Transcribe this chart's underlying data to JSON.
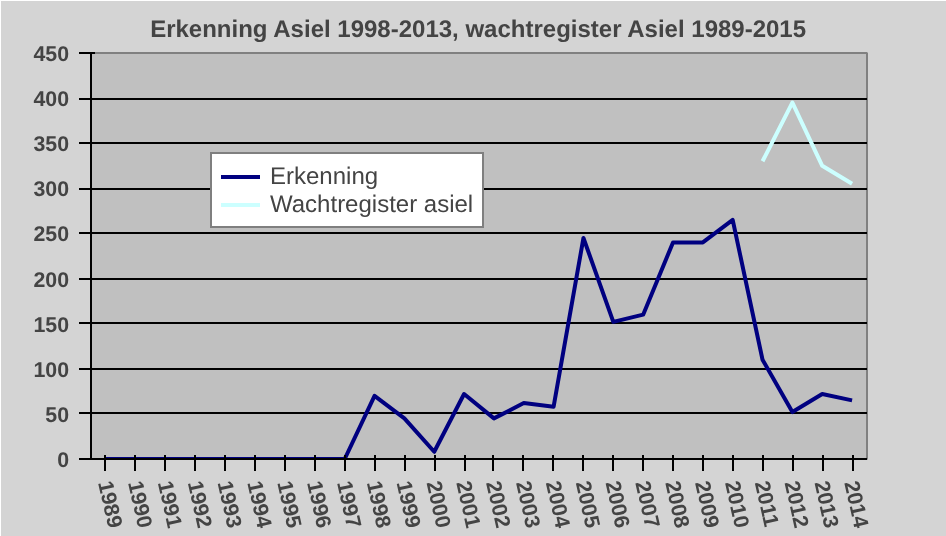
{
  "chart_data": {
    "type": "line",
    "title": "Erkenning Asiel 1998-2013, wachtregister Asiel 1989-2015",
    "categories": [
      "1989",
      "1990",
      "1991",
      "1992",
      "1993",
      "1994",
      "1995",
      "1996",
      "1997",
      "1998",
      "1999",
      "2000",
      "2001",
      "2002",
      "2003",
      "2004",
      "2005",
      "2006",
      "2007",
      "2008",
      "2009",
      "2010",
      "2011",
      "2012",
      "2013",
      "2014"
    ],
    "series": [
      {
        "name": "Erkenning",
        "color": "#000080",
        "values": [
          0,
          0,
          0,
          0,
          0,
          0,
          0,
          0,
          0,
          70,
          45,
          8,
          72,
          45,
          62,
          58,
          245,
          152,
          160,
          240,
          240,
          265,
          110,
          52,
          72,
          65
        ]
      },
      {
        "name": "Wachtregister asiel",
        "color": "#ccffff",
        "values": [
          null,
          null,
          null,
          null,
          null,
          null,
          null,
          null,
          null,
          null,
          null,
          null,
          null,
          null,
          null,
          null,
          null,
          null,
          null,
          null,
          null,
          null,
          330,
          395,
          325,
          305
        ]
      }
    ],
    "ylim": [
      0,
      450
    ],
    "yticks": [
      0,
      50,
      100,
      150,
      200,
      250,
      300,
      350,
      400,
      450
    ],
    "grid": "y",
    "legend": "top left"
  }
}
